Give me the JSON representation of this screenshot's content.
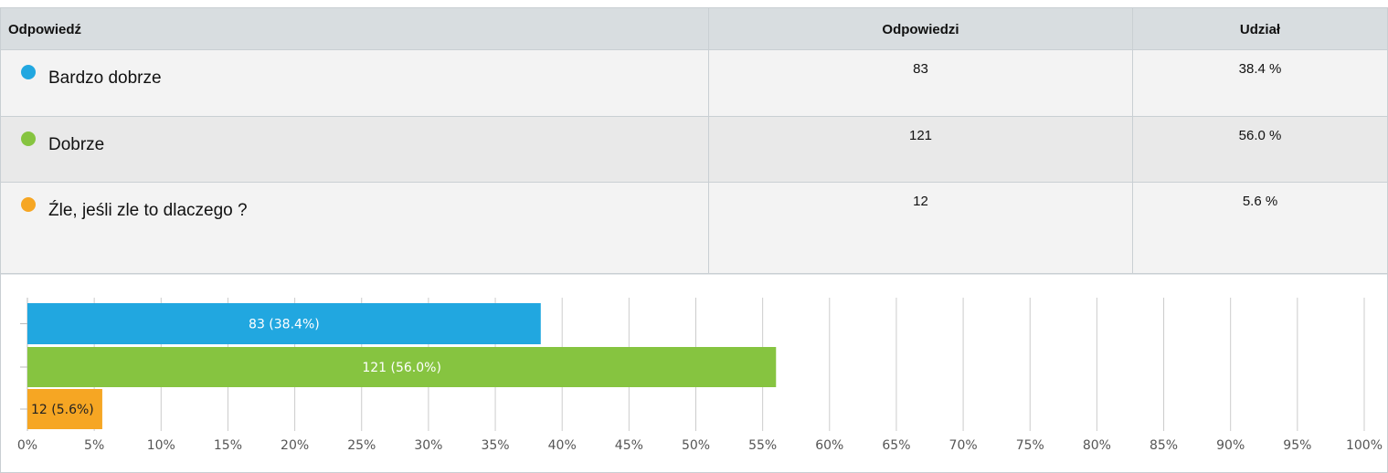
{
  "table": {
    "headers": [
      "Odpowiedź",
      "Odpowiedzi",
      "Udział"
    ],
    "rows": [
      [
        "Bardzo dobrze",
        83,
        "38.4 %"
      ],
      [
        "Dobrze",
        121,
        "56.0 %"
      ],
      [
        "Źle, jeśli zle to dlaczego ?",
        12,
        "5.6 %"
      ]
    ]
  },
  "chart_data": {
    "type": "hbar",
    "categories": [
      null,
      null,
      null
    ],
    "values": [
      38.4,
      56.0,
      5.6
    ],
    "value_labels": [
      "83 (38.4%)",
      "121 (56.0%)",
      "12 (5.6%)"
    ],
    "colors": [
      "#21a7e0",
      "#86c440",
      "#f6a623"
    ],
    "xlim": [
      0,
      100
    ],
    "xticks": [
      {
        "value": 0,
        "label": "0%"
      },
      {
        "value": 5,
        "label": "5%"
      },
      {
        "value": 10,
        "label": "10%"
      },
      {
        "value": 15,
        "label": "15%"
      },
      {
        "value": 20,
        "label": "20%"
      },
      {
        "value": 25,
        "label": "25%"
      },
      {
        "value": 30,
        "label": "30%"
      },
      {
        "value": 35,
        "label": "35%"
      },
      {
        "value": 40,
        "label": "40%"
      },
      {
        "value": 45,
        "label": "45%"
      },
      {
        "value": 50,
        "label": "50%"
      },
      {
        "value": 55,
        "label": "55%"
      },
      {
        "value": 60,
        "label": "60%"
      },
      {
        "value": 65,
        "label": "65%"
      },
      {
        "value": 70,
        "label": "70%"
      },
      {
        "value": 75,
        "label": "75%"
      },
      {
        "value": 80,
        "label": "80%"
      },
      {
        "value": 85,
        "label": "85%"
      },
      {
        "value": 90,
        "label": "90%"
      },
      {
        "value": 95,
        "label": "95%"
      },
      {
        "value": 100,
        "label": "100%"
      }
    ],
    "grid": true
  }
}
